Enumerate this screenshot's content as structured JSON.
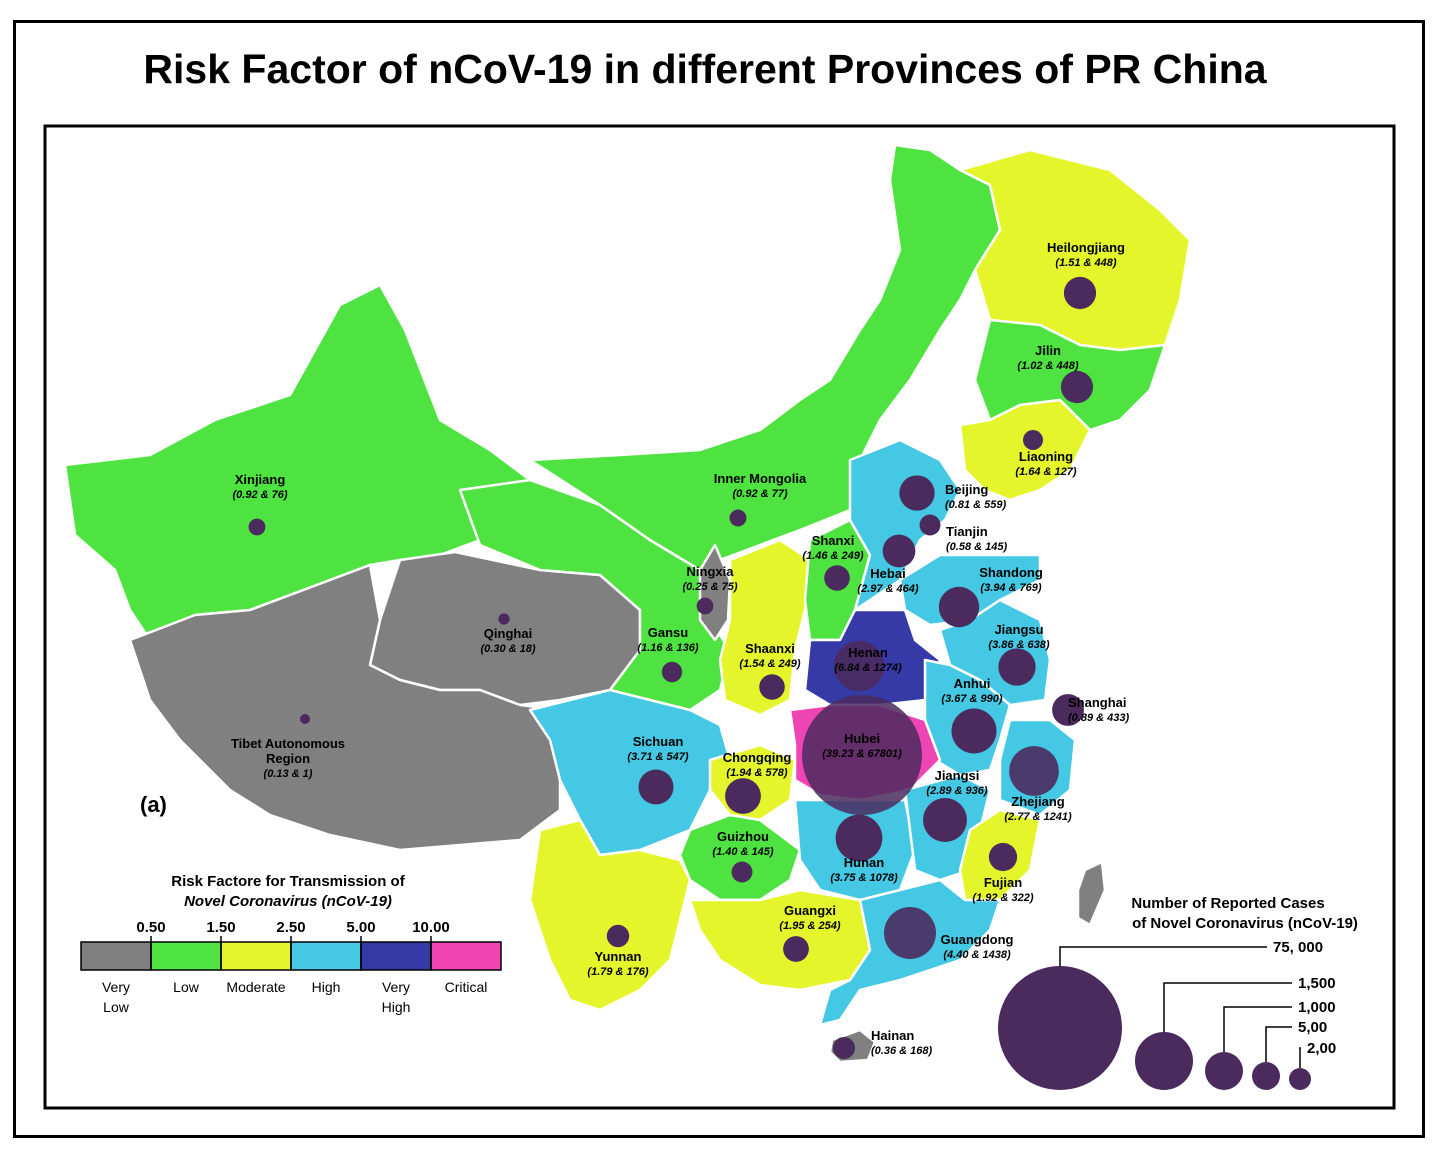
{
  "title": "Risk Factor of nCoV-19 in different Provinces of PR China",
  "panel_label": "(a)",
  "colors": {
    "very_low": "#808080",
    "low": "#4fe341",
    "moderate": "#e5f52c",
    "high": "#45c8e3",
    "very_high": "#363aa6",
    "critical": "#ef45b4",
    "bubble": "#4b2a5e"
  },
  "provinces": [
    {
      "name": "Heilongjiang",
      "values": "(1.51 & 448)",
      "risk": 1.51,
      "cases": 448,
      "category": "moderate"
    },
    {
      "name": "Jilin",
      "values": "(1.02 & 448)",
      "risk": 1.02,
      "cases": 448,
      "category": "low"
    },
    {
      "name": "Liaoning",
      "values": "(1.64 & 127)",
      "risk": 1.64,
      "cases": 127,
      "category": "moderate"
    },
    {
      "name": "Xinjiang",
      "values": "(0.92 & 76)",
      "risk": 0.92,
      "cases": 76,
      "category": "low"
    },
    {
      "name": "Inner Mongolia",
      "values": "(0.92 & 77)",
      "risk": 0.92,
      "cases": 77,
      "category": "low"
    },
    {
      "name": "Beijing",
      "values": "(0.81 & 559)",
      "risk": 0.81,
      "cases": 559,
      "category": "high"
    },
    {
      "name": "Tianjin",
      "values": "(0.58 & 145)",
      "risk": 0.58,
      "cases": 145,
      "category": "high"
    },
    {
      "name": "Shanxi",
      "values": "(1.46 & 249)",
      "risk": 1.46,
      "cases": 249,
      "category": "low"
    },
    {
      "name": "Hebai",
      "values": "(2.97 & 464)",
      "risk": 2.97,
      "cases": 464,
      "category": "high"
    },
    {
      "name": "Shandong",
      "values": "(3.94 & 769)",
      "risk": 3.94,
      "cases": 769,
      "category": "high"
    },
    {
      "name": "Ningxia",
      "values": "(0.25 & 75)",
      "risk": 0.25,
      "cases": 75,
      "category": "very_low"
    },
    {
      "name": "Qinghai",
      "values": "(0.30 & 18)",
      "risk": 0.3,
      "cases": 18,
      "category": "very_low"
    },
    {
      "name": "Gansu",
      "values": "(1.16 & 136)",
      "risk": 1.16,
      "cases": 136,
      "category": "low"
    },
    {
      "name": "Shaanxi",
      "values": "(1.54 & 249)",
      "risk": 1.54,
      "cases": 249,
      "category": "moderate"
    },
    {
      "name": "Henan",
      "values": "(6.84 & 1274)",
      "risk": 6.84,
      "cases": 1274,
      "category": "very_high"
    },
    {
      "name": "Jiangsu",
      "values": "(3.86 & 638)",
      "risk": 3.86,
      "cases": 638,
      "category": "high"
    },
    {
      "name": "Anhui",
      "values": "(3.67 & 990)",
      "risk": 3.67,
      "cases": 990,
      "category": "high"
    },
    {
      "name": "Shanghai",
      "values": "(0.89 & 433)",
      "risk": 0.89,
      "cases": 433,
      "category": "low"
    },
    {
      "name": "Tibet Autonomous Region",
      "name_lines": [
        "Tibet Autonomous",
        "Region"
      ],
      "values": "(0.13 & 1)",
      "risk": 0.13,
      "cases": 1,
      "category": "very_low"
    },
    {
      "name": "Sichuan",
      "values": "(3.71 & 547)",
      "risk": 3.71,
      "cases": 547,
      "category": "high"
    },
    {
      "name": "Chongqing",
      "values": "(1.94 & 578)",
      "risk": 1.94,
      "cases": 578,
      "category": "moderate"
    },
    {
      "name": "Hubei",
      "values": "(39.23 & 67801)",
      "risk": 39.23,
      "cases": 67801,
      "category": "critical"
    },
    {
      "name": "Jiangsi",
      "values": "(2.89 & 936)",
      "risk": 2.89,
      "cases": 936,
      "category": "high"
    },
    {
      "name": "Zhejiang",
      "values": "(2.77 & 1241)",
      "risk": 2.77,
      "cases": 1241,
      "category": "high"
    },
    {
      "name": "Guizhou",
      "values": "(1.40 & 145)",
      "risk": 1.4,
      "cases": 145,
      "category": "low"
    },
    {
      "name": "Hunan",
      "values": "(3.75 & 1078)",
      "risk": 3.75,
      "cases": 1078,
      "category": "high"
    },
    {
      "name": "Fujian",
      "values": "(1.92 & 322)",
      "risk": 1.92,
      "cases": 322,
      "category": "moderate"
    },
    {
      "name": "Guangxi",
      "values": "(1.95 & 254)",
      "risk": 1.95,
      "cases": 254,
      "category": "moderate"
    },
    {
      "name": "Guangdong",
      "values": "(4.40 & 1438)",
      "risk": 4.4,
      "cases": 1438,
      "category": "high"
    },
    {
      "name": "Yunnan",
      "values": "(1.79 & 176)",
      "risk": 1.79,
      "cases": 176,
      "category": "moderate"
    },
    {
      "name": "Hainan",
      "values": "(0.36 & 168)",
      "risk": 0.36,
      "cases": 168,
      "category": "very_low"
    }
  ],
  "risk_legend": {
    "title_line1": "Risk Factore for Transmission of",
    "title_line2": "Novel Coronavirus (nCoV-19)",
    "thresholds": [
      "0.50",
      "1.50",
      "2.50",
      "5.00",
      "10.00"
    ],
    "categories": [
      {
        "label": [
          "Very",
          "Low"
        ],
        "color": "#808080"
      },
      {
        "label": [
          "Low"
        ],
        "color": "#4fe341"
      },
      {
        "label": [
          "Moderate"
        ],
        "color": "#e5f52c"
      },
      {
        "label": [
          "High"
        ],
        "color": "#45c8e3"
      },
      {
        "label": [
          "Very",
          "High"
        ],
        "color": "#363aa6"
      },
      {
        "label": [
          "Critical"
        ],
        "color": "#ef45b4"
      }
    ]
  },
  "case_legend": {
    "title_line1": "Number of Reported Cases",
    "title_line2": "of Novel Coronavirus (nCoV-19)",
    "sizes": [
      {
        "label": "75, 000",
        "value": 75000
      },
      {
        "label": "1,500",
        "value": 1500
      },
      {
        "label": "1,000",
        "value": 1000
      },
      {
        "label": "5,00",
        "value": 500
      },
      {
        "label": "2,00",
        "value": 200
      }
    ]
  }
}
